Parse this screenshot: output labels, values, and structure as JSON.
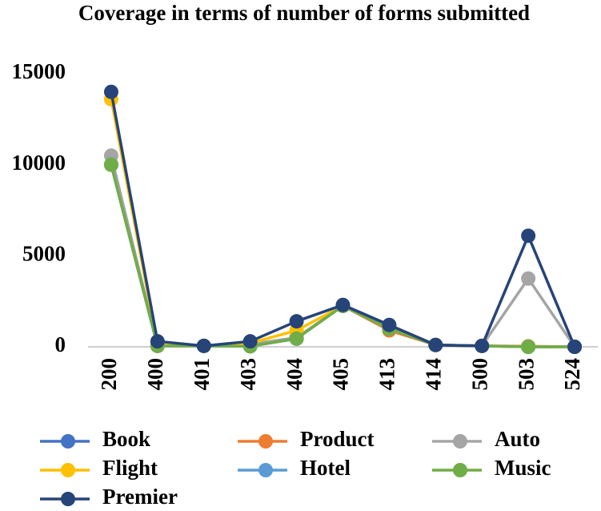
{
  "chart_data": {
    "type": "line",
    "title": "Coverage in terms of number of forms submitted",
    "categories": [
      "200",
      "400",
      "401",
      "403",
      "404",
      "405",
      "413",
      "414",
      "500",
      "503",
      "524"
    ],
    "series": [
      {
        "name": "Book",
        "color": "#4472c4",
        "values": [
          10000,
          50,
          50,
          30,
          450,
          2250,
          1000,
          100,
          50,
          0,
          0
        ]
      },
      {
        "name": "Product",
        "color": "#ed7d31",
        "values": [
          10000,
          50,
          50,
          100,
          500,
          2250,
          900,
          100,
          50,
          30,
          0
        ]
      },
      {
        "name": "Auto",
        "color": "#a5a5a5",
        "values": [
          10500,
          50,
          50,
          150,
          500,
          2250,
          1000,
          100,
          50,
          3750,
          0
        ]
      },
      {
        "name": "Flight",
        "color": "#ffc000",
        "values": [
          13600,
          100,
          50,
          200,
          900,
          2250,
          1100,
          100,
          50,
          0,
          0
        ]
      },
      {
        "name": "Hotel",
        "color": "#5b9bd5",
        "values": [
          10000,
          50,
          50,
          30,
          450,
          2250,
          1000,
          100,
          50,
          0,
          0
        ]
      },
      {
        "name": "Music",
        "color": "#70ad47",
        "values": [
          10000,
          50,
          50,
          30,
          450,
          2250,
          1000,
          100,
          50,
          0,
          0
        ]
      },
      {
        "name": "Premier",
        "color": "#264478",
        "values": [
          14000,
          300,
          50,
          300,
          1400,
          2300,
          1200,
          100,
          50,
          6100,
          0
        ]
      }
    ],
    "ylim": [
      0,
      15000
    ],
    "yticks": [
      0,
      5000,
      10000,
      15000
    ],
    "grid": false,
    "legend": "bottom"
  }
}
